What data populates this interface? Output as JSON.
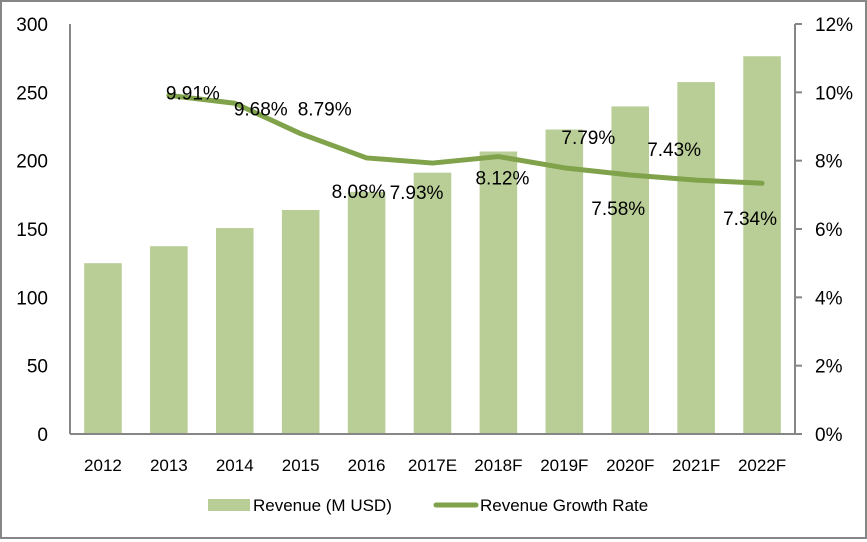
{
  "chart_data": {
    "type": "bar",
    "title": "",
    "xlabel": "",
    "ylabel": "",
    "categories": [
      "2012",
      "2013",
      "2014",
      "2015",
      "2016",
      "2017E",
      "2018F",
      "2019F",
      "2020F",
      "2021F",
      "2022F"
    ],
    "series": [
      {
        "name": "Revenue (M USD)",
        "type": "bar",
        "axis": "left",
        "color": "#B9CE96",
        "values": [
          125,
          137.4,
          150.7,
          163.9,
          177.2,
          191.2,
          206.7,
          222.8,
          239.7,
          257.5,
          276.4
        ]
      },
      {
        "name": "Revenue Growth Rate",
        "type": "line",
        "axis": "right",
        "color": "#7FA24A",
        "values": [
          null,
          9.91,
          9.68,
          8.79,
          8.08,
          7.93,
          8.12,
          7.79,
          7.58,
          7.43,
          7.34
        ],
        "labels": [
          null,
          "9.91%",
          "9.68%",
          "8.79%",
          "8.08%",
          "7.93%",
          "8.12%",
          "7.79%",
          "7.58%",
          "7.43%",
          "7.34%"
        ]
      }
    ],
    "ylim": [
      0,
      300
    ],
    "y_ticks": [
      "0",
      "50",
      "100",
      "150",
      "200",
      "250",
      "300"
    ],
    "y2lim": [
      0,
      12
    ],
    "y2_ticks": [
      "0%",
      "2%",
      "4%",
      "6%",
      "8%",
      "10%",
      "12%"
    ],
    "grid": false,
    "legend": {
      "position": "bottom",
      "entries": [
        "Revenue (M USD)",
        "Revenue Growth Rate"
      ]
    }
  }
}
